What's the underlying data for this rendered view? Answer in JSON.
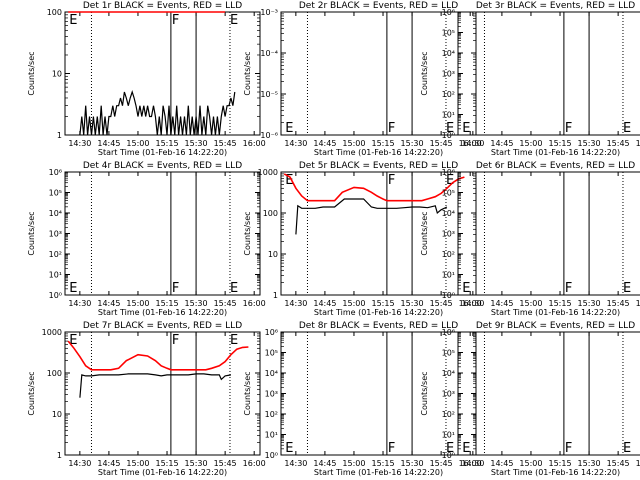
{
  "colors": {
    "events": "#000000",
    "lld": "#ff0000",
    "background": "#ffffff"
  },
  "x_ticks": [
    "14:30",
    "14:45",
    "15:00",
    "15:15",
    "15:30",
    "15:45",
    "16:00"
  ],
  "xlabel": "Start Time (01-Feb-16 14:22:20)",
  "ylabel": "Counts/sec",
  "marker_lines": {
    "dotted": [
      "14:36",
      "15:47:30"
    ],
    "solid": [
      "15:17",
      "15:30"
    ]
  },
  "chart_data": [
    {
      "type": "line",
      "title": "Det 1r BLACK = Events, RED = LLD",
      "ylim": [
        1,
        100
      ],
      "log_y": true,
      "y_ticks": [
        "1",
        "10",
        "100"
      ],
      "annotations": [
        {
          "text": "E",
          "x": "14:24",
          "y": 100
        },
        {
          "text": "F",
          "x": "15:17",
          "y": 100
        },
        {
          "text": "E",
          "x": "15:47",
          "y": 100
        }
      ],
      "series": [
        {
          "name": "Events",
          "color": "#000000",
          "x": [
            "14:30",
            "14:31",
            "14:32",
            "14:33",
            "14:34",
            "14:35",
            "14:36",
            "14:37",
            "14:38",
            "14:39",
            "14:40",
            "14:41",
            "14:42",
            "14:43",
            "14:44",
            "14:45",
            "14:46",
            "14:47",
            "14:48",
            "14:49",
            "14:50",
            "14:51",
            "14:52",
            "14:53",
            "14:54",
            "14:55",
            "14:56",
            "14:57",
            "14:58",
            "14:59",
            "15:00",
            "15:01",
            "15:02",
            "15:03",
            "15:04",
            "15:05",
            "15:06",
            "15:07",
            "15:08",
            "15:09",
            "15:10",
            "15:11",
            "15:12",
            "15:13",
            "15:14",
            "15:15",
            "15:16",
            "15:17",
            "15:18",
            "15:19",
            "15:20",
            "15:21",
            "15:22",
            "15:23",
            "15:24",
            "15:25",
            "15:26",
            "15:27",
            "15:28",
            "15:29",
            "15:30",
            "15:31",
            "15:32",
            "15:33",
            "15:34",
            "15:35",
            "15:36",
            "15:37",
            "15:38",
            "15:39",
            "15:40",
            "15:41",
            "15:42",
            "15:43",
            "15:44",
            "15:45",
            "15:46",
            "15:47",
            "15:48",
            "15:49",
            "15:50"
          ],
          "y": [
            1,
            2,
            1,
            3,
            1,
            2,
            1,
            2,
            1,
            2,
            1,
            3,
            1,
            2,
            1,
            2,
            2,
            3,
            2,
            3,
            3,
            4,
            3,
            5,
            4,
            3,
            4,
            5,
            4,
            3,
            2,
            3,
            2,
            3,
            2,
            3,
            2,
            2,
            3,
            2,
            1,
            2,
            1,
            3,
            2,
            1,
            3,
            1,
            2,
            1,
            3,
            1,
            2,
            1,
            2,
            1,
            3,
            1,
            2,
            1,
            2,
            1,
            3,
            1,
            2,
            1,
            3,
            2,
            1,
            2,
            1,
            2,
            1,
            2,
            3,
            2,
            3,
            3,
            4,
            3,
            5
          ]
        },
        {
          "name": "LLD",
          "color": "#ff0000",
          "x": [
            "14:24",
            "14:30",
            "14:45",
            "15:00",
            "15:15",
            "15:30",
            "15:45"
          ],
          "y": [
            100,
            100,
            100,
            100,
            100,
            100,
            100
          ]
        }
      ]
    },
    {
      "type": "line",
      "title": "Det 2r BLACK = Events, RED = LLD",
      "ylim": [
        1e-06,
        0.001
      ],
      "log_y": true,
      "y_ticks": [
        "10⁻⁶",
        "10⁻⁵",
        "10⁻⁴",
        "10⁻³"
      ],
      "annotations": [
        {
          "text": "E",
          "x": "14:24",
          "y": 1e-06
        },
        {
          "text": "F",
          "x": "15:17",
          "y": 1e-06
        },
        {
          "text": "E",
          "x": "15:47",
          "y": 1e-06
        }
      ],
      "series": []
    },
    {
      "type": "line",
      "title": "Det 3r BLACK = Events, RED = LLD",
      "ylim": [
        1,
        1000000
      ],
      "log_y": true,
      "y_ticks": [
        "10⁰",
        "10¹",
        "10²",
        "10³",
        "10⁴",
        "10⁵",
        "10⁶"
      ],
      "annotations": [
        {
          "text": "E",
          "x": "14:24",
          "y": 1
        },
        {
          "text": "F",
          "x": "15:17",
          "y": 1
        },
        {
          "text": "E",
          "x": "15:47",
          "y": 1
        }
      ],
      "series": []
    },
    {
      "type": "line",
      "title": "Det 4r BLACK = Events, RED = LLD",
      "ylim": [
        1,
        1000000
      ],
      "log_y": true,
      "y_ticks": [
        "10⁰",
        "10¹",
        "10²",
        "10³",
        "10⁴",
        "10⁵",
        "10⁶"
      ],
      "annotations": [
        {
          "text": "E",
          "x": "14:24",
          "y": 1
        },
        {
          "text": "F",
          "x": "15:17",
          "y": 1
        },
        {
          "text": "E",
          "x": "15:47",
          "y": 1
        }
      ],
      "series": []
    },
    {
      "type": "line",
      "title": "Det 5r BLACK = Events, RED = LLD",
      "ylim": [
        1,
        1000
      ],
      "log_y": true,
      "y_ticks": [
        "1",
        "10",
        "100",
        "1000"
      ],
      "annotations": [
        {
          "text": "E",
          "x": "14:24",
          "y": 1000
        },
        {
          "text": "F",
          "x": "15:17",
          "y": 1000
        },
        {
          "text": "E",
          "x": "15:47",
          "y": 1000
        }
      ],
      "series": [
        {
          "name": "Events",
          "color": "#000000",
          "x": [
            "14:30",
            "14:31",
            "14:33",
            "14:36",
            "14:40",
            "14:44",
            "14:46",
            "14:50",
            "14:55",
            "15:00",
            "15:05",
            "15:09",
            "15:12",
            "15:15",
            "15:17",
            "15:18",
            "15:22",
            "15:26",
            "15:30",
            "15:34",
            "15:38",
            "15:42",
            "15:43",
            "15:45",
            "15:48"
          ],
          "y": [
            30,
            150,
            130,
            130,
            130,
            140,
            140,
            140,
            220,
            220,
            220,
            140,
            130,
            130,
            130,
            130,
            130,
            135,
            140,
            140,
            135,
            150,
            100,
            120,
            140
          ]
        },
        {
          "name": "LLD",
          "color": "#ff0000",
          "x": [
            "14:24",
            "14:27",
            "14:30",
            "14:33",
            "14:36",
            "14:42",
            "14:46",
            "14:50",
            "14:54",
            "15:00",
            "15:05",
            "15:09",
            "15:12",
            "15:15",
            "15:17",
            "15:20",
            "15:25",
            "15:30",
            "15:35",
            "15:38",
            "15:42",
            "15:45",
            "15:48",
            "15:51",
            "15:54",
            "15:57"
          ],
          "y": [
            900,
            750,
            400,
            260,
            200,
            200,
            200,
            200,
            320,
            420,
            400,
            320,
            260,
            220,
            200,
            200,
            200,
            200,
            200,
            220,
            250,
            300,
            400,
            550,
            680,
            750
          ]
        }
      ]
    },
    {
      "type": "line",
      "title": "Det 6r BLACK = Events, RED = LLD",
      "ylim": [
        1,
        1000000
      ],
      "log_y": true,
      "y_ticks": [
        "10⁰",
        "10¹",
        "10²",
        "10³",
        "10⁴",
        "10⁵",
        "10⁶"
      ],
      "annotations": [
        {
          "text": "E",
          "x": "14:24",
          "y": 1
        },
        {
          "text": "F",
          "x": "15:17",
          "y": 1
        },
        {
          "text": "E",
          "x": "15:47",
          "y": 1
        }
      ],
      "series": []
    },
    {
      "type": "line",
      "title": "Det 7r BLACK = Events, RED = LLD",
      "ylim": [
        1,
        1000
      ],
      "log_y": true,
      "y_ticks": [
        "1",
        "10",
        "100",
        "1000"
      ],
      "annotations": [
        {
          "text": "E",
          "x": "14:24",
          "y": 1000
        },
        {
          "text": "F",
          "x": "15:17",
          "y": 1000
        },
        {
          "text": "E",
          "x": "15:47",
          "y": 1000
        }
      ],
      "series": [
        {
          "name": "Events",
          "color": "#000000",
          "x": [
            "14:30",
            "14:31",
            "14:33",
            "14:36",
            "14:40",
            "14:44",
            "14:46",
            "14:50",
            "14:55",
            "15:00",
            "15:05",
            "15:09",
            "15:12",
            "15:15",
            "15:17",
            "15:18",
            "15:22",
            "15:26",
            "15:30",
            "15:34",
            "15:38",
            "15:42",
            "15:43",
            "15:45",
            "15:48"
          ],
          "y": [
            25,
            90,
            85,
            85,
            90,
            90,
            90,
            90,
            95,
            95,
            95,
            90,
            85,
            90,
            90,
            90,
            90,
            90,
            95,
            95,
            90,
            90,
            70,
            85,
            90
          ]
        },
        {
          "name": "LLD",
          "color": "#ff0000",
          "x": [
            "14:24",
            "14:27",
            "14:30",
            "14:33",
            "14:36",
            "14:42",
            "14:46",
            "14:50",
            "14:54",
            "15:00",
            "15:05",
            "15:09",
            "15:12",
            "15:15",
            "15:17",
            "15:20",
            "15:25",
            "15:30",
            "15:35",
            "15:38",
            "15:42",
            "15:45",
            "15:48",
            "15:51",
            "15:54",
            "15:57"
          ],
          "y": [
            600,
            400,
            250,
            150,
            120,
            120,
            120,
            130,
            200,
            280,
            260,
            200,
            150,
            130,
            120,
            120,
            120,
            120,
            120,
            130,
            150,
            190,
            280,
            380,
            420,
            430
          ]
        }
      ]
    },
    {
      "type": "line",
      "title": "Det 8r BLACK = Events, RED = LLD",
      "ylim": [
        1,
        1000000
      ],
      "log_y": true,
      "y_ticks": [
        "10⁰",
        "10¹",
        "10²",
        "10³",
        "10⁴",
        "10⁵",
        "10⁶"
      ],
      "annotations": [
        {
          "text": "E",
          "x": "14:24",
          "y": 1
        },
        {
          "text": "F",
          "x": "15:17",
          "y": 1
        },
        {
          "text": "E",
          "x": "15:47",
          "y": 1
        }
      ],
      "series": []
    },
    {
      "type": "line",
      "title": "Det 9r BLACK = Events, RED = LLD",
      "ylim": [
        1,
        1000000
      ],
      "log_y": true,
      "y_ticks": [
        "10⁰",
        "10¹",
        "10²",
        "10³",
        "10⁴",
        "10⁵",
        "10⁶"
      ],
      "annotations": [
        {
          "text": "E",
          "x": "14:24",
          "y": 1
        },
        {
          "text": "F",
          "x": "15:17",
          "y": 1
        },
        {
          "text": "E",
          "x": "15:47",
          "y": 1
        }
      ],
      "series": []
    }
  ]
}
